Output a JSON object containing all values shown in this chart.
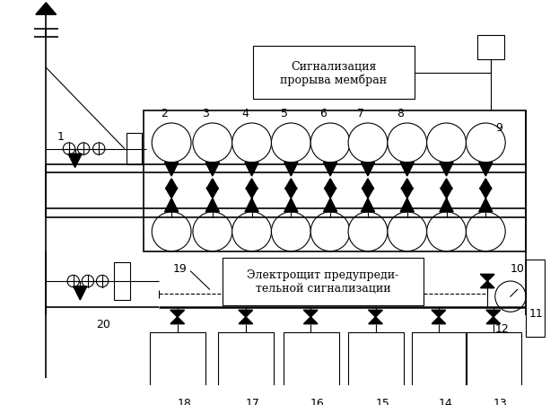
{
  "bg_color": "#ffffff",
  "box1_text": "Сигнализация\nпрорыва мембран",
  "box2_text": "Электрощит предупреди-\nтельной сигнализации",
  "fig_w": 6.23,
  "fig_h": 4.52,
  "dpi": 100,
  "lw_thin": 0.8,
  "lw_med": 1.2,
  "lw_thick": 1.8
}
